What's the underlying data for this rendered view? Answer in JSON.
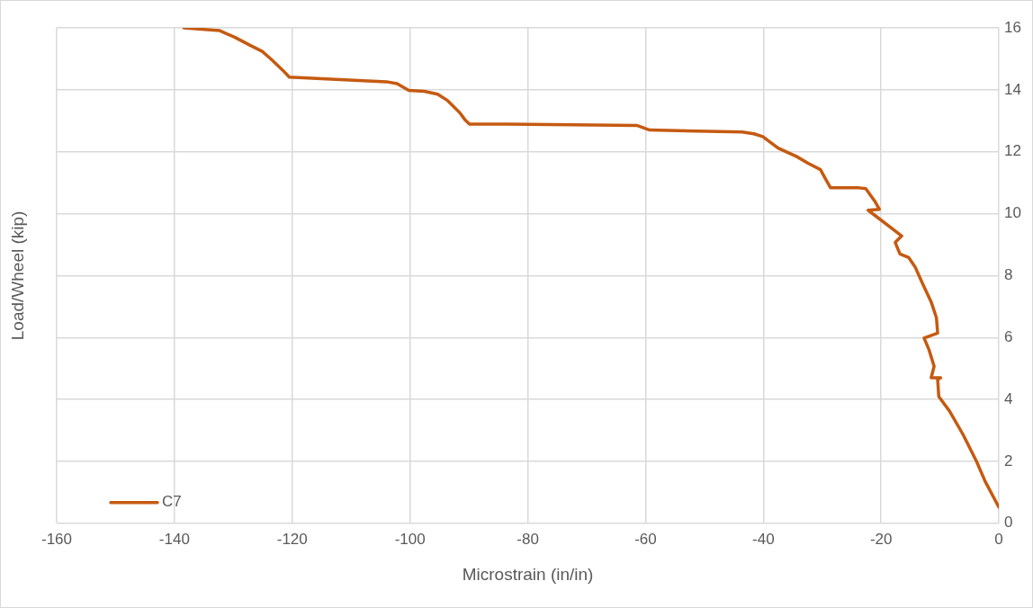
{
  "chart_data": {
    "type": "line",
    "xlabel": "Microstrain (in/in)",
    "ylabel": "Load/Wheel (kip)",
    "xlim": [
      -160,
      0
    ],
    "xticks": [
      -160,
      -140,
      -120,
      -100,
      -80,
      -60,
      -40,
      -20,
      0
    ],
    "ylim": [
      0,
      16
    ],
    "yticks": [
      0,
      2,
      4,
      6,
      8,
      10,
      12,
      14,
      16
    ],
    "grid": true,
    "legend": "bottom left",
    "marker": "none",
    "line_style": "solid",
    "series": [
      {
        "name": "C7",
        "color": "#c55a11",
        "x": [
          0,
          -2.3,
          -3.8,
          -6.1,
          -8.4,
          -10.2,
          -10.4,
          -9.9,
          -11.5,
          -11.0,
          -11.9,
          -12.7,
          -10.4,
          -10.6,
          -11.5,
          -13.0,
          -14.2,
          -15.3,
          -16.8,
          -17.6,
          -16.5,
          -22.2,
          -20.3,
          -21.1,
          -22.6,
          -24.0,
          -28.6,
          -29.4,
          -30.3,
          -32.4,
          -34.4,
          -37.5,
          -40.1,
          -41.6,
          -43.6,
          -59.3,
          -61.5,
          -83.4,
          -89.9,
          -90.7,
          -91.5,
          -93.6,
          -95.3,
          -97.6,
          -100.2,
          -102.2,
          -104.0,
          -120.5,
          -121.6,
          -123.6,
          -125.1,
          -127.3,
          -129.7,
          -132.3,
          -138.4
        ],
        "values": [
          0.52,
          1.34,
          2.0,
          2.87,
          3.63,
          4.09,
          4.64,
          4.7,
          4.7,
          5.07,
          5.62,
          5.98,
          6.14,
          6.63,
          7.15,
          7.76,
          8.27,
          8.58,
          8.7,
          9.07,
          9.28,
          10.11,
          10.14,
          10.41,
          10.81,
          10.84,
          10.84,
          11.11,
          11.42,
          11.63,
          11.85,
          12.12,
          12.49,
          12.58,
          12.64,
          12.7,
          12.85,
          12.89,
          12.89,
          13.04,
          13.25,
          13.65,
          13.86,
          13.95,
          13.98,
          14.2,
          14.26,
          14.41,
          14.63,
          14.99,
          15.24,
          15.45,
          15.69,
          15.91,
          16.0
        ]
      }
    ]
  }
}
